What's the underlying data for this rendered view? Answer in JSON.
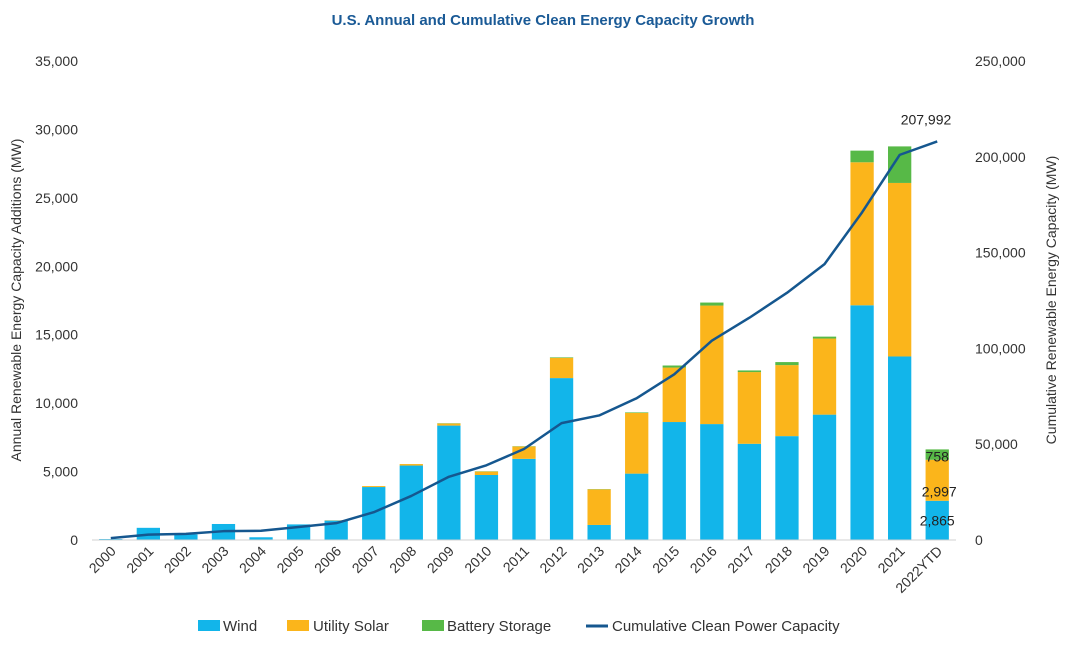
{
  "chart_data": {
    "type": "bar",
    "title": "U.S. Annual and Cumulative Clean Energy Capacity Growth",
    "ylabel": "Annual Renewable Energy Capacity Additions (MW)",
    "y2label": "Cumulative Renewable Energy Capacity  (MW)",
    "ylim": [
      0,
      35000
    ],
    "y2lim": [
      0,
      250000
    ],
    "yticks": [
      "0",
      "5,000",
      "10,000",
      "15,000",
      "20,000",
      "25,000",
      "30,000",
      "35,000"
    ],
    "y2ticks": [
      "0",
      "50,000",
      "100,000",
      "150,000",
      "200,000",
      "250,000"
    ],
    "categories": [
      "2000",
      "2001",
      "2002",
      "2003",
      "2004",
      "2005",
      "2006",
      "2007",
      "2008",
      "2009",
      "2010",
      "2011",
      "2012",
      "2013",
      "2014",
      "2015",
      "2016",
      "2017",
      "2018",
      "2019",
      "2020",
      "2021",
      "2022YTD"
    ],
    "series": [
      {
        "name": "Wind",
        "kind": "bar",
        "color": "#12b5ea",
        "values": [
          70,
          890,
          410,
          1170,
          200,
          1140,
          1420,
          3870,
          5440,
          8360,
          4750,
          5930,
          11830,
          1100,
          4850,
          8620,
          8470,
          7030,
          7590,
          9160,
          17150,
          13410,
          2865
        ]
      },
      {
        "name": "Utility Solar",
        "kind": "bar",
        "color": "#fbb51b",
        "values": [
          0,
          0,
          0,
          0,
          0,
          0,
          20,
          70,
          110,
          150,
          250,
          900,
          1480,
          2600,
          4440,
          3980,
          8660,
          5240,
          5190,
          5560,
          10450,
          12680,
          2997
        ]
      },
      {
        "name": "Battery Storage",
        "kind": "bar",
        "color": "#57b947",
        "values": [
          0,
          0,
          0,
          0,
          0,
          0,
          0,
          0,
          0,
          20,
          20,
          20,
          40,
          20,
          40,
          150,
          220,
          120,
          220,
          140,
          850,
          2670,
          758
        ]
      },
      {
        "name": "Cumulative Clean Power Capacity",
        "kind": "line",
        "color": "#15578f",
        "values": [
          1000,
          2800,
          3200,
          4600,
          4800,
          6800,
          8800,
          14500,
          23000,
          33000,
          39000,
          47500,
          61000,
          65000,
          74000,
          86500,
          104000,
          116000,
          129000,
          144000,
          171000,
          201000,
          207992
        ]
      }
    ],
    "annotations": {
      "cumulative_last": "207,992",
      "wind_last": "2,865",
      "solar_last": "2,997",
      "storage_last": "758"
    },
    "legend_position": "bottom",
    "grid": false
  }
}
